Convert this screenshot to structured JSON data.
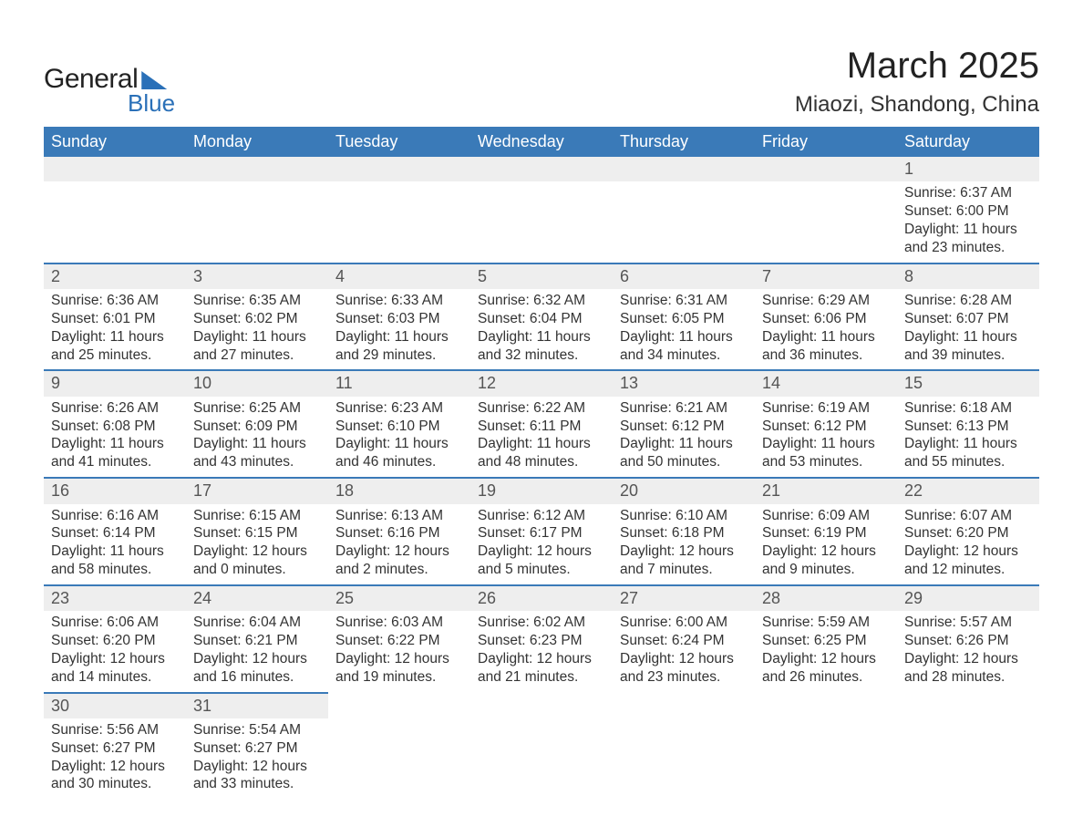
{
  "brand": {
    "word1": "General",
    "word2": "Blue",
    "accent_color": "#2a70b8",
    "text_color": "#222222"
  },
  "title": "March 2025",
  "location": "Miaozi, Shandong, China",
  "header_bg": "#3a7ab8",
  "header_fg": "#ffffff",
  "daynum_bg": "#eeeeee",
  "divider_color": "#3a7ab8",
  "body_text_color": "#333333",
  "day_labels": [
    "Sunday",
    "Monday",
    "Tuesday",
    "Wednesday",
    "Thursday",
    "Friday",
    "Saturday"
  ],
  "weeks": [
    [
      null,
      null,
      null,
      null,
      null,
      null,
      {
        "n": "1",
        "sr": "Sunrise: 6:37 AM",
        "ss": "Sunset: 6:00 PM",
        "d1": "Daylight: 11 hours",
        "d2": "and 23 minutes."
      }
    ],
    [
      {
        "n": "2",
        "sr": "Sunrise: 6:36 AM",
        "ss": "Sunset: 6:01 PM",
        "d1": "Daylight: 11 hours",
        "d2": "and 25 minutes."
      },
      {
        "n": "3",
        "sr": "Sunrise: 6:35 AM",
        "ss": "Sunset: 6:02 PM",
        "d1": "Daylight: 11 hours",
        "d2": "and 27 minutes."
      },
      {
        "n": "4",
        "sr": "Sunrise: 6:33 AM",
        "ss": "Sunset: 6:03 PM",
        "d1": "Daylight: 11 hours",
        "d2": "and 29 minutes."
      },
      {
        "n": "5",
        "sr": "Sunrise: 6:32 AM",
        "ss": "Sunset: 6:04 PM",
        "d1": "Daylight: 11 hours",
        "d2": "and 32 minutes."
      },
      {
        "n": "6",
        "sr": "Sunrise: 6:31 AM",
        "ss": "Sunset: 6:05 PM",
        "d1": "Daylight: 11 hours",
        "d2": "and 34 minutes."
      },
      {
        "n": "7",
        "sr": "Sunrise: 6:29 AM",
        "ss": "Sunset: 6:06 PM",
        "d1": "Daylight: 11 hours",
        "d2": "and 36 minutes."
      },
      {
        "n": "8",
        "sr": "Sunrise: 6:28 AM",
        "ss": "Sunset: 6:07 PM",
        "d1": "Daylight: 11 hours",
        "d2": "and 39 minutes."
      }
    ],
    [
      {
        "n": "9",
        "sr": "Sunrise: 6:26 AM",
        "ss": "Sunset: 6:08 PM",
        "d1": "Daylight: 11 hours",
        "d2": "and 41 minutes."
      },
      {
        "n": "10",
        "sr": "Sunrise: 6:25 AM",
        "ss": "Sunset: 6:09 PM",
        "d1": "Daylight: 11 hours",
        "d2": "and 43 minutes."
      },
      {
        "n": "11",
        "sr": "Sunrise: 6:23 AM",
        "ss": "Sunset: 6:10 PM",
        "d1": "Daylight: 11 hours",
        "d2": "and 46 minutes."
      },
      {
        "n": "12",
        "sr": "Sunrise: 6:22 AM",
        "ss": "Sunset: 6:11 PM",
        "d1": "Daylight: 11 hours",
        "d2": "and 48 minutes."
      },
      {
        "n": "13",
        "sr": "Sunrise: 6:21 AM",
        "ss": "Sunset: 6:12 PM",
        "d1": "Daylight: 11 hours",
        "d2": "and 50 minutes."
      },
      {
        "n": "14",
        "sr": "Sunrise: 6:19 AM",
        "ss": "Sunset: 6:12 PM",
        "d1": "Daylight: 11 hours",
        "d2": "and 53 minutes."
      },
      {
        "n": "15",
        "sr": "Sunrise: 6:18 AM",
        "ss": "Sunset: 6:13 PM",
        "d1": "Daylight: 11 hours",
        "d2": "and 55 minutes."
      }
    ],
    [
      {
        "n": "16",
        "sr": "Sunrise: 6:16 AM",
        "ss": "Sunset: 6:14 PM",
        "d1": "Daylight: 11 hours",
        "d2": "and 58 minutes."
      },
      {
        "n": "17",
        "sr": "Sunrise: 6:15 AM",
        "ss": "Sunset: 6:15 PM",
        "d1": "Daylight: 12 hours",
        "d2": "and 0 minutes."
      },
      {
        "n": "18",
        "sr": "Sunrise: 6:13 AM",
        "ss": "Sunset: 6:16 PM",
        "d1": "Daylight: 12 hours",
        "d2": "and 2 minutes."
      },
      {
        "n": "19",
        "sr": "Sunrise: 6:12 AM",
        "ss": "Sunset: 6:17 PM",
        "d1": "Daylight: 12 hours",
        "d2": "and 5 minutes."
      },
      {
        "n": "20",
        "sr": "Sunrise: 6:10 AM",
        "ss": "Sunset: 6:18 PM",
        "d1": "Daylight: 12 hours",
        "d2": "and 7 minutes."
      },
      {
        "n": "21",
        "sr": "Sunrise: 6:09 AM",
        "ss": "Sunset: 6:19 PM",
        "d1": "Daylight: 12 hours",
        "d2": "and 9 minutes."
      },
      {
        "n": "22",
        "sr": "Sunrise: 6:07 AM",
        "ss": "Sunset: 6:20 PM",
        "d1": "Daylight: 12 hours",
        "d2": "and 12 minutes."
      }
    ],
    [
      {
        "n": "23",
        "sr": "Sunrise: 6:06 AM",
        "ss": "Sunset: 6:20 PM",
        "d1": "Daylight: 12 hours",
        "d2": "and 14 minutes."
      },
      {
        "n": "24",
        "sr": "Sunrise: 6:04 AM",
        "ss": "Sunset: 6:21 PM",
        "d1": "Daylight: 12 hours",
        "d2": "and 16 minutes."
      },
      {
        "n": "25",
        "sr": "Sunrise: 6:03 AM",
        "ss": "Sunset: 6:22 PM",
        "d1": "Daylight: 12 hours",
        "d2": "and 19 minutes."
      },
      {
        "n": "26",
        "sr": "Sunrise: 6:02 AM",
        "ss": "Sunset: 6:23 PM",
        "d1": "Daylight: 12 hours",
        "d2": "and 21 minutes."
      },
      {
        "n": "27",
        "sr": "Sunrise: 6:00 AM",
        "ss": "Sunset: 6:24 PM",
        "d1": "Daylight: 12 hours",
        "d2": "and 23 minutes."
      },
      {
        "n": "28",
        "sr": "Sunrise: 5:59 AM",
        "ss": "Sunset: 6:25 PM",
        "d1": "Daylight: 12 hours",
        "d2": "and 26 minutes."
      },
      {
        "n": "29",
        "sr": "Sunrise: 5:57 AM",
        "ss": "Sunset: 6:26 PM",
        "d1": "Daylight: 12 hours",
        "d2": "and 28 minutes."
      }
    ],
    [
      {
        "n": "30",
        "sr": "Sunrise: 5:56 AM",
        "ss": "Sunset: 6:27 PM",
        "d1": "Daylight: 12 hours",
        "d2": "and 30 minutes."
      },
      {
        "n": "31",
        "sr": "Sunrise: 5:54 AM",
        "ss": "Sunset: 6:27 PM",
        "d1": "Daylight: 12 hours",
        "d2": "and 33 minutes."
      },
      null,
      null,
      null,
      null,
      null
    ]
  ]
}
